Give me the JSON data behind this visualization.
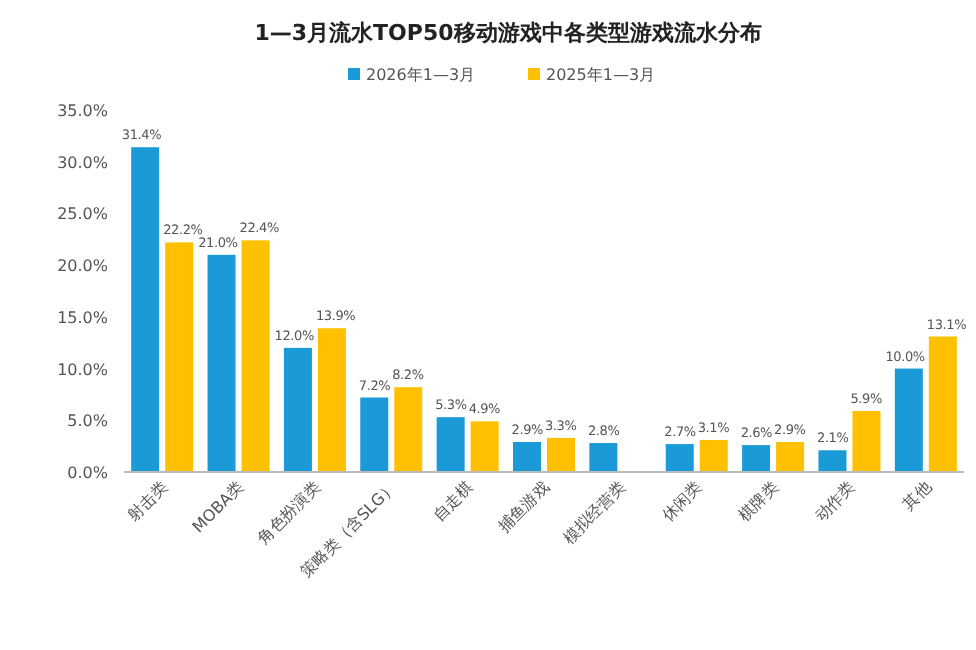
{
  "chart_data": {
    "type": "bar",
    "title": "1—3月流水TOP50移动游戏中各类型游戏流水分布",
    "categories": [
      "射击类",
      "MOBA类",
      "角色扮演类",
      "策略类（含SLG）",
      "自走棋",
      "捕鱼游戏",
      "模拟经营类",
      "休闲类",
      "棋牌类",
      "动作类",
      "其他"
    ],
    "series": [
      {
        "name": "2026年1—3月",
        "color": "#1a9ad6",
        "values": [
          31.4,
          21.0,
          12.0,
          7.2,
          5.3,
          2.9,
          2.8,
          2.7,
          2.6,
          2.1,
          10.0
        ],
        "value_labels": [
          "31.4%",
          "21.0%",
          "12.0%",
          "7.2%",
          "5.3%",
          "2.9%",
          "2.8%",
          "2.7%",
          "2.6%",
          "2.1%",
          "10.0%"
        ]
      },
      {
        "name": "2025年1—3月",
        "color": "#ffc000",
        "values": [
          22.2,
          22.4,
          13.9,
          8.2,
          4.9,
          3.3,
          null,
          3.1,
          2.9,
          5.9,
          13.1
        ],
        "value_labels": [
          "22.2%",
          "22.4%",
          "13.9%",
          "8.2%",
          "4.9%",
          "3.3%",
          null,
          "3.1%",
          "2.9%",
          "5.9%",
          "13.1%"
        ]
      }
    ],
    "ylim": [
      0,
      35
    ],
    "yticks": [
      {
        "value": 0,
        "label": "0.0%"
      },
      {
        "value": 5,
        "label": "5.0%"
      },
      {
        "value": 10,
        "label": "10.0%"
      },
      {
        "value": 15,
        "label": "15.0%"
      },
      {
        "value": 20,
        "label": "20.0%"
      },
      {
        "value": 25,
        "label": "25.0%"
      },
      {
        "value": 30,
        "label": "30.0%"
      },
      {
        "value": 35,
        "label": "35.0%"
      }
    ],
    "legend": "top",
    "grid": false
  }
}
